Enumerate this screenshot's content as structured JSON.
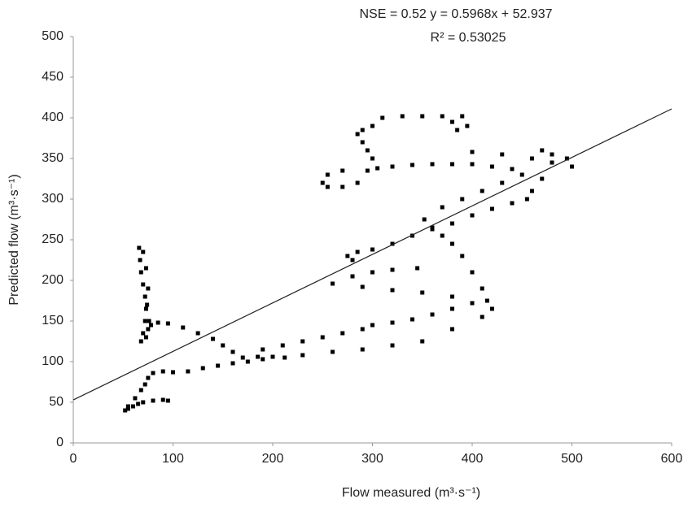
{
  "chart_data": {
    "type": "scatter",
    "annotations": [
      "NSE = 0.52   y = 0.5968x + 52.937",
      "R² = 0.53025"
    ],
    "x_label": "Flow measured (m³·s⁻¹)",
    "y_label": "Predicted flow (m³·s⁻¹)",
    "color": "#000000",
    "trendline": {
      "slope": 0.5968,
      "intercept": 52.937
    },
    "x": [
      52,
      55,
      60,
      65,
      70,
      80,
      90,
      95,
      55,
      62,
      68,
      72,
      75,
      80,
      90,
      100,
      115,
      130,
      145,
      160,
      175,
      190,
      170,
      185,
      200,
      212,
      160,
      150,
      140,
      125,
      110,
      95,
      85,
      78,
      75,
      68,
      70,
      72,
      73,
      72,
      70,
      68,
      67,
      66,
      70,
      73,
      75,
      74,
      76,
      73,
      190,
      210,
      230,
      250,
      270,
      290,
      300,
      320,
      340,
      360,
      380,
      400,
      415,
      230,
      260,
      290,
      320,
      350,
      380,
      410,
      420,
      410,
      400,
      390,
      380,
      370,
      360,
      352,
      380,
      350,
      320,
      290,
      260,
      280,
      300,
      320,
      345,
      280,
      275,
      285,
      300,
      320,
      340,
      360,
      380,
      400,
      420,
      440,
      455,
      460,
      470,
      480,
      495,
      500,
      480,
      470,
      370,
      390,
      410,
      430,
      450,
      440,
      420,
      400,
      380,
      360,
      340,
      320,
      305,
      295,
      285,
      270,
      255,
      250,
      255,
      270,
      300,
      295,
      290,
      285,
      290,
      300,
      310,
      330,
      350,
      370,
      390,
      380,
      385,
      395,
      400,
      430,
      460
    ],
    "values": [
      40,
      42,
      45,
      48,
      50,
      52,
      53,
      52,
      45,
      55,
      65,
      72,
      80,
      86,
      88,
      87,
      88,
      92,
      95,
      98,
      100,
      103,
      105,
      106,
      106,
      105,
      112,
      120,
      128,
      135,
      142,
      147,
      148,
      145,
      140,
      125,
      135,
      150,
      165,
      180,
      195,
      210,
      225,
      240,
      235,
      215,
      190,
      170,
      150,
      130,
      115,
      120,
      125,
      130,
      135,
      140,
      145,
      148,
      152,
      158,
      165,
      172,
      175,
      108,
      112,
      115,
      120,
      125,
      140,
      155,
      165,
      190,
      210,
      230,
      245,
      255,
      265,
      275,
      180,
      185,
      188,
      192,
      196,
      205,
      210,
      213,
      215,
      225,
      230,
      235,
      238,
      245,
      255,
      263,
      270,
      280,
      288,
      295,
      300,
      310,
      325,
      345,
      350,
      340,
      355,
      360,
      290,
      300,
      310,
      320,
      330,
      337,
      340,
      343,
      343,
      343,
      342,
      340,
      338,
      335,
      320,
      315,
      315,
      320,
      330,
      335,
      350,
      360,
      370,
      380,
      385,
      390,
      400,
      402,
      402,
      402,
      402,
      395,
      385,
      390,
      358,
      355,
      350
    ],
    "xlim": [
      0,
      600
    ],
    "xticks": [
      0,
      100,
      200,
      300,
      400,
      500,
      600
    ],
    "ylim": [
      0,
      500
    ],
    "yticks": [
      0,
      50,
      100,
      150,
      200,
      250,
      300,
      350,
      400,
      450,
      500
    ]
  }
}
